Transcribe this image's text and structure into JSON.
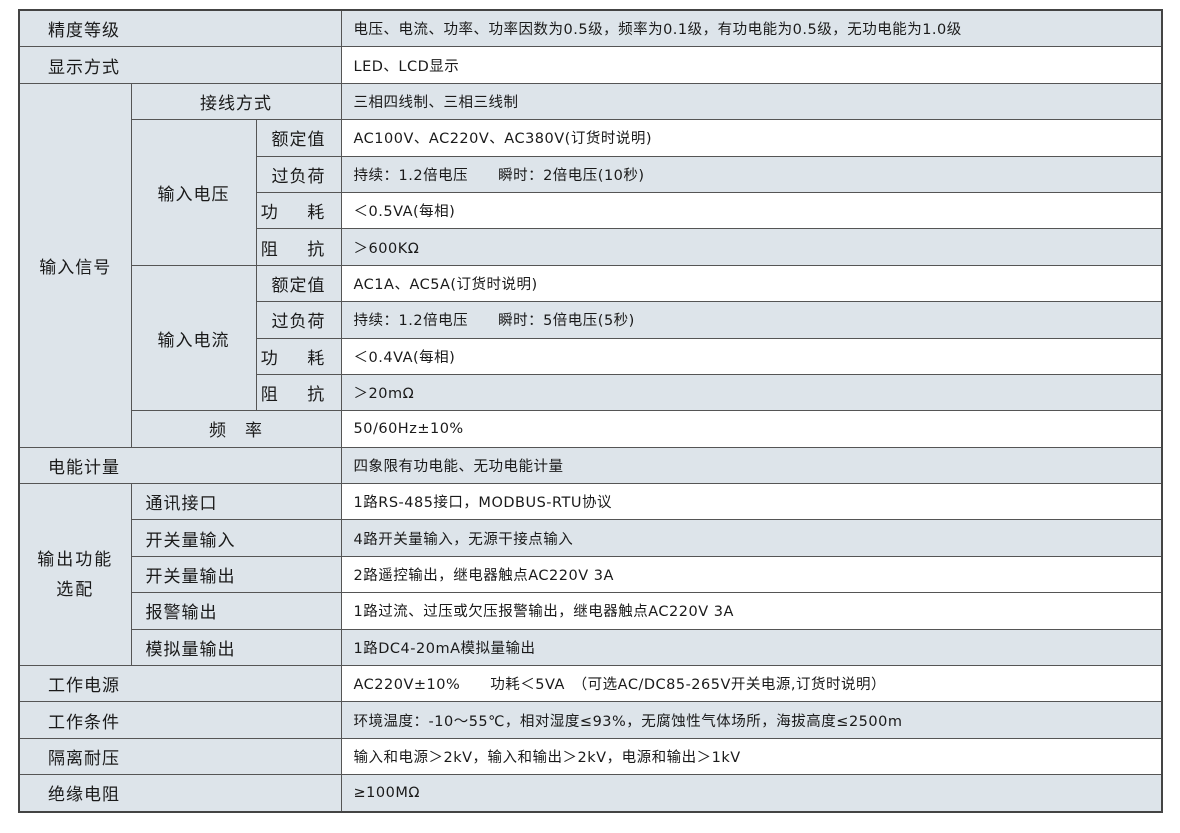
{
  "rows": {
    "accuracy": {
      "label": "精度等级",
      "value": "电压、电流、功率、功率因数为0.5级，频率为0.1级，有功电能为0.5级，无功电能为1.0级"
    },
    "display": {
      "label": "显示方式",
      "value": "LED、LCD显示"
    },
    "input": {
      "label": "输入信号",
      "wiring": {
        "label": "接线方式",
        "value": "三相四线制、三相三线制"
      },
      "voltage": {
        "label": "输入电压",
        "rated": {
          "label": "额定值",
          "value": "AC100V、AC220V、AC380V(订货时说明)"
        },
        "overload": {
          "label": "过负荷",
          "value": "持续：1.2倍电压　　瞬时：2倍电压(10秒)"
        },
        "power": {
          "label": "功 耗",
          "value": "＜0.5VA(每相)"
        },
        "impedance": {
          "label": "阻 抗",
          "value": "＞600KΩ"
        }
      },
      "current": {
        "label": "输入电流",
        "rated": {
          "label": "额定值",
          "value": "AC1A、AC5A(订货时说明)"
        },
        "overload": {
          "label": "过负荷",
          "value": "持续：1.2倍电压　　瞬时：5倍电压(5秒)"
        },
        "power": {
          "label": "功 耗",
          "value": "＜0.4VA(每相)"
        },
        "impedance": {
          "label": "阻 抗",
          "value": "＞20mΩ"
        }
      },
      "frequency": {
        "label": "频　率",
        "value": "50/60Hz±10%"
      }
    },
    "energy": {
      "label": "电能计量",
      "value": "四象限有功电能、无功电能计量"
    },
    "output": {
      "label": "输出功能选配",
      "comm": {
        "label": "通讯接口",
        "value": "1路RS-485接口，MODBUS-RTU协议"
      },
      "di": {
        "label": "开关量输入",
        "value": "4路开关量输入，无源干接点输入"
      },
      "do": {
        "label": "开关量输出",
        "value": "2路遥控输出，继电器触点AC220V 3A"
      },
      "alarm": {
        "label": "报警输出",
        "value": "1路过流、过压或欠压报警输出，继电器触点AC220V 3A"
      },
      "analog": {
        "label": "模拟量输出",
        "value": "1路DC4-20mA模拟量输出"
      }
    },
    "supply": {
      "label": "工作电源",
      "value": "AC220V±10%　　功耗＜5VA　（可选AC/DC85-265V开关电源,订货时说明）"
    },
    "conditions": {
      "label": "工作条件",
      "value": "环境温度：-10～55℃，相对湿度≤93%，无腐蚀性气体场所，海拔高度≤2500m"
    },
    "isolation": {
      "label": "隔离耐压",
      "value": "输入和电源＞2kV，输入和输出＞2kV，电源和输出＞1kV"
    },
    "insulation": {
      "label": "绝缘电阻",
      "value": "≥100MΩ"
    }
  },
  "colors": {
    "label_bg": "#dde4ea",
    "border": "#555555"
  }
}
